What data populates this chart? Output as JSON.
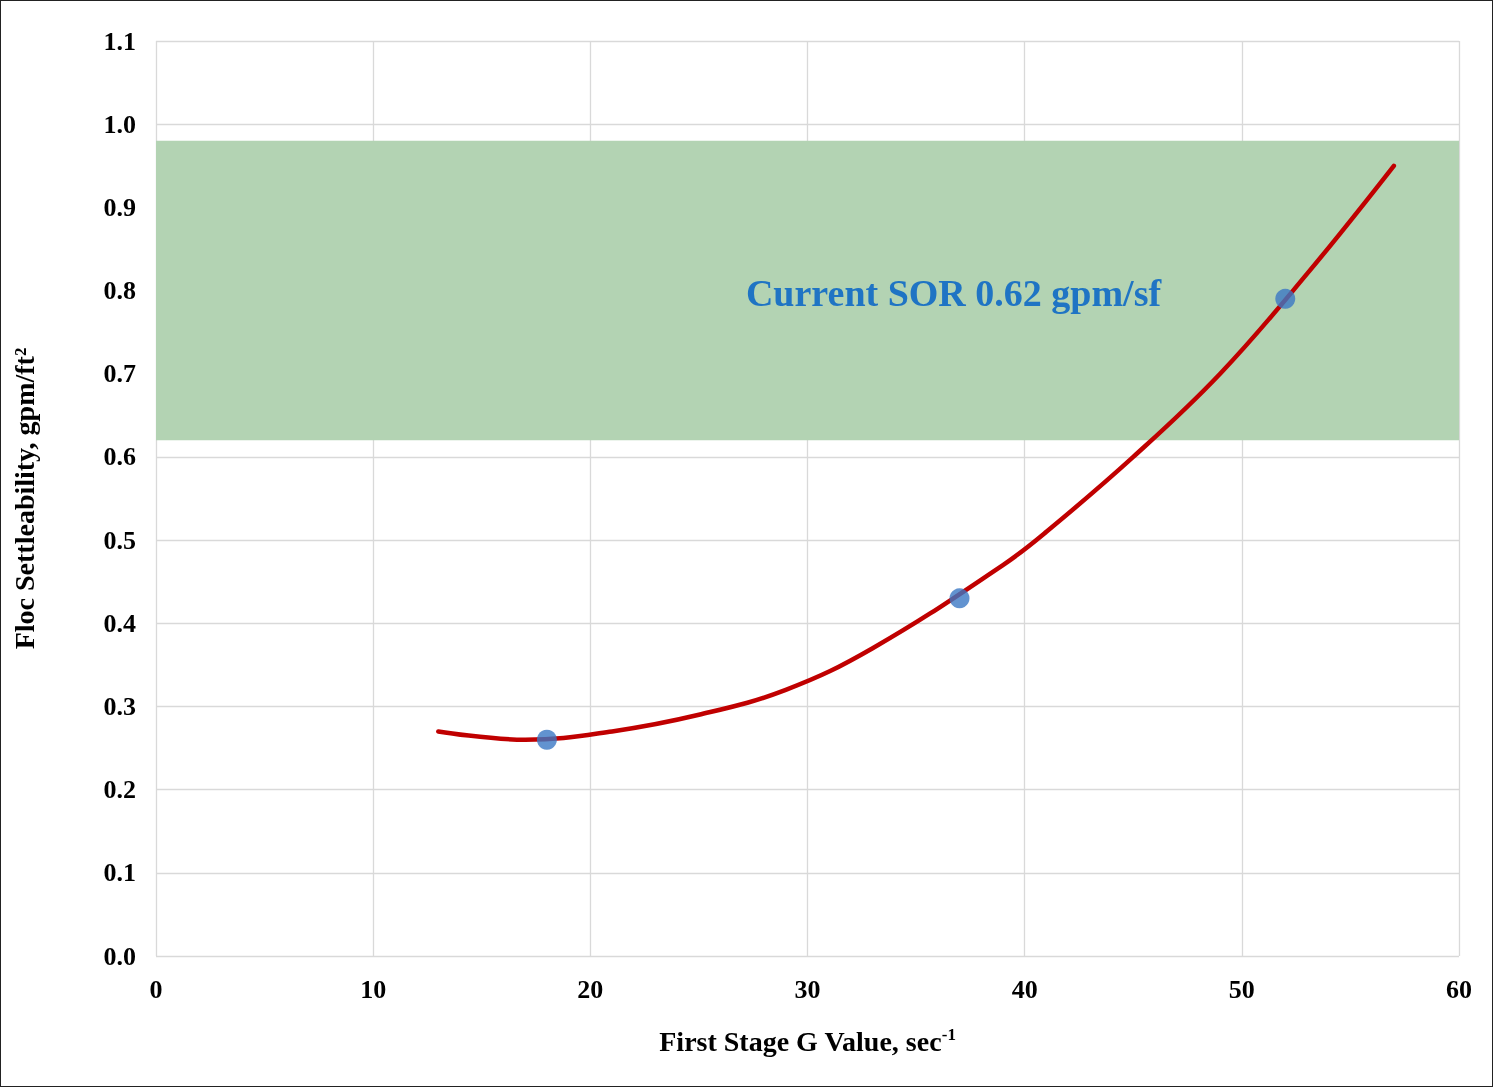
{
  "chart_data": {
    "type": "scatter",
    "xlabel": "First Stage G Value, sec$^{-1}$",
    "ylabel": "Floc Settleability, gpm/ft²",
    "xlim": [
      0,
      60
    ],
    "xticks": [
      0,
      10,
      20,
      30,
      40,
      50,
      60
    ],
    "ylim": [
      0,
      1.1
    ],
    "yticks": [
      {
        "value": 0,
        "label": "0.0"
      },
      {
        "value": 0.1,
        "label": "0.1"
      },
      {
        "value": 0.2,
        "label": "0.2"
      },
      {
        "value": 0.3,
        "label": "0.3"
      },
      {
        "value": 0.4,
        "label": "0.4"
      },
      {
        "value": 0.5,
        "label": "0.5"
      },
      {
        "value": 0.6,
        "label": "0.6"
      },
      {
        "value": 0.7,
        "label": "0.7"
      },
      {
        "value": 0.8,
        "label": "0.8"
      },
      {
        "value": 0.9,
        "label": "0.9"
      },
      {
        "value": 1.0,
        "label": "1.0"
      },
      {
        "value": 1.1,
        "label": "1.1"
      }
    ],
    "grid": true,
    "bands": [
      {
        "axis": "y",
        "from": 0.62,
        "to": 0.98,
        "label": "Current SOR 0.62 gpm/sf",
        "color": "#b3d3b3"
      }
    ],
    "series": [
      {
        "color": "#3b78c4",
        "marker": "circle",
        "x": [
          18,
          37,
          52
        ],
        "values": [
          0.26,
          0.43,
          0.79
        ]
      },
      {
        "type": "line",
        "color": "#c00000",
        "marker": "none",
        "line_style": "solid",
        "x": [
          13,
          17,
          21,
          25,
          29,
          33,
          39,
          41,
          45,
          49,
          53,
          57
        ],
        "values": [
          0.27,
          0.26,
          0.27,
          0.29,
          0.32,
          0.37,
          0.47,
          0.51,
          0.6,
          0.7,
          0.82,
          0.95
        ]
      }
    ]
  }
}
